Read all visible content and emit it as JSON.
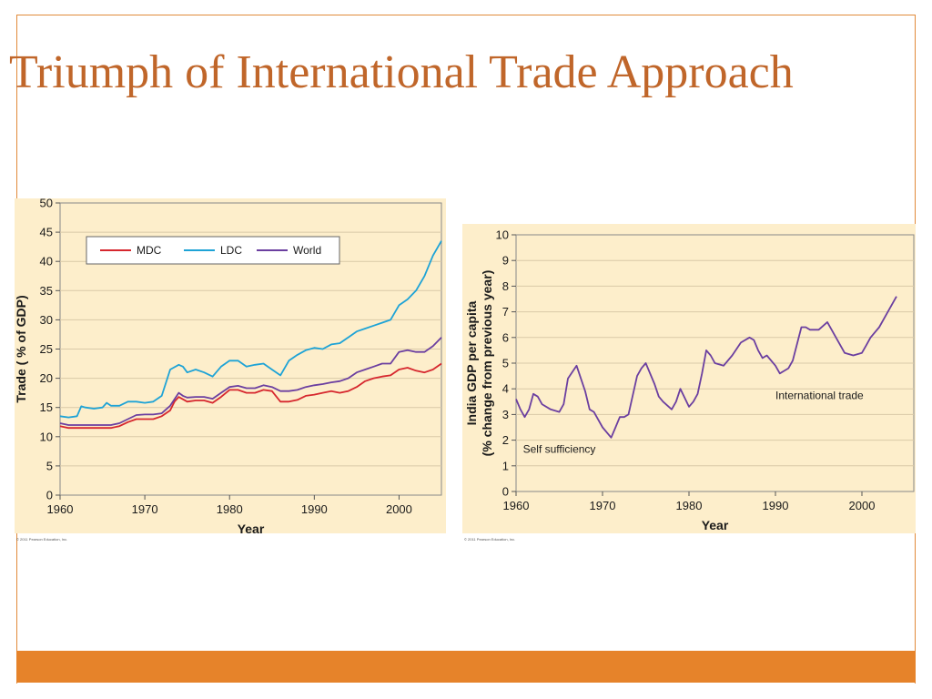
{
  "slide": {
    "title": "Triumph of International Trade Approach",
    "colors": {
      "accent": "#e6832a",
      "title": "#c0662a",
      "plot_bg": "#fdeecb"
    }
  },
  "chart_data": [
    {
      "type": "line",
      "xlabel": "Year",
      "ylabel": "Trade ( % of GDP)",
      "xlim": [
        1960,
        2005
      ],
      "ylim": [
        0,
        50
      ],
      "xticks": [
        1960,
        1970,
        1980,
        1990,
        2000
      ],
      "yticks": [
        0,
        5,
        10,
        15,
        20,
        25,
        30,
        35,
        40,
        45,
        50
      ],
      "grid": "horizontal",
      "legend_position": "top-left",
      "credit": "© 2011 Pearson Education, Inc.",
      "series": [
        {
          "name": "MDC",
          "color": "#d6272e",
          "x": [
            1960,
            1961,
            1962,
            1963,
            1964,
            1965,
            1966,
            1967,
            1968,
            1969,
            1970,
            1971,
            1972,
            1973,
            1973.5,
            1974,
            1974.5,
            1975,
            1976,
            1977,
            1978,
            1979,
            1980,
            1981,
            1982,
            1983,
            1984,
            1985,
            1986,
            1987,
            1988,
            1989,
            1990,
            1991,
            1992,
            1993,
            1994,
            1995,
            1996,
            1997,
            1998,
            1999,
            2000,
            2001,
            2002,
            2003,
            2004,
            2005
          ],
          "values": [
            11.8,
            11.5,
            11.5,
            11.5,
            11.5,
            11.5,
            11.5,
            11.8,
            12.5,
            13.0,
            13.0,
            13.0,
            13.5,
            14.5,
            16.0,
            16.8,
            16.4,
            16.0,
            16.2,
            16.2,
            15.8,
            16.8,
            18.0,
            18.0,
            17.5,
            17.5,
            18.0,
            17.8,
            16.0,
            16.0,
            16.3,
            17.0,
            17.2,
            17.5,
            17.8,
            17.5,
            17.8,
            18.5,
            19.5,
            20.0,
            20.3,
            20.5,
            21.5,
            21.8,
            21.3,
            21.0,
            21.5,
            22.5
          ]
        },
        {
          "name": "LDC",
          "color": "#1ea3d6",
          "x": [
            1960,
            1961,
            1962,
            1962.5,
            1963,
            1964,
            1965,
            1965.5,
            1966,
            1967,
            1968,
            1969,
            1970,
            1971,
            1972,
            1973,
            1974,
            1974.5,
            1975,
            1976,
            1977,
            1978,
            1979,
            1980,
            1981,
            1982,
            1983,
            1984,
            1985,
            1986,
            1987,
            1988,
            1989,
            1990,
            1991,
            1992,
            1993,
            1994,
            1995,
            1996,
            1997,
            1998,
            1999,
            2000,
            2001,
            2002,
            2003,
            2004,
            2005
          ],
          "values": [
            13.5,
            13.3,
            13.5,
            15.2,
            15.0,
            14.8,
            15.0,
            15.8,
            15.3,
            15.3,
            16.0,
            16.0,
            15.8,
            16.0,
            17.0,
            21.5,
            22.3,
            22.0,
            21.0,
            21.5,
            21.0,
            20.3,
            22.0,
            23.0,
            23.0,
            22.0,
            22.3,
            22.5,
            21.5,
            20.5,
            23.0,
            24.0,
            24.8,
            25.2,
            25.0,
            25.8,
            26.0,
            27.0,
            28.0,
            28.5,
            29.0,
            29.5,
            30.0,
            32.5,
            33.5,
            35.0,
            37.5,
            41.0,
            43.5
          ]
        },
        {
          "name": "World",
          "color": "#6b3fa0",
          "x": [
            1960,
            1961,
            1962,
            1963,
            1964,
            1965,
            1966,
            1967,
            1968,
            1969,
            1970,
            1971,
            1972,
            1973,
            1974,
            1974.5,
            1975,
            1976,
            1977,
            1978,
            1979,
            1980,
            1981,
            1982,
            1983,
            1984,
            1985,
            1986,
            1987,
            1988,
            1989,
            1990,
            1991,
            1992,
            1993,
            1994,
            1995,
            1996,
            1997,
            1998,
            1999,
            2000,
            2001,
            2002,
            2003,
            2004,
            2005
          ],
          "values": [
            12.3,
            12.0,
            12.0,
            12.0,
            12.0,
            12.0,
            12.0,
            12.3,
            13.0,
            13.7,
            13.8,
            13.8,
            14.0,
            15.3,
            17.5,
            17.0,
            16.7,
            16.8,
            16.8,
            16.5,
            17.5,
            18.5,
            18.7,
            18.3,
            18.3,
            18.8,
            18.5,
            17.8,
            17.8,
            18.0,
            18.5,
            18.8,
            19.0,
            19.3,
            19.5,
            20.0,
            21.0,
            21.5,
            22.0,
            22.5,
            22.5,
            24.5,
            24.8,
            24.5,
            24.5,
            25.5,
            27.0
          ]
        }
      ]
    },
    {
      "type": "line",
      "xlabel": "Year",
      "ylabel": "India GDP per capita",
      "ylabel2": "(% change from previous year)",
      "xlim": [
        1960,
        2006
      ],
      "ylim": [
        0,
        10
      ],
      "xticks": [
        1960,
        1970,
        1980,
        1990,
        2000
      ],
      "yticks": [
        0,
        1,
        2,
        3,
        4,
        5,
        6,
        7,
        8,
        9,
        10
      ],
      "grid": "horizontal",
      "credit": "© 2011 Pearson Education, Inc.",
      "annotations": [
        {
          "text": "Self sufficiency",
          "x": 1960.8,
          "y": 1.5
        },
        {
          "text": "International trade",
          "x": 1990.0,
          "y": 3.6
        }
      ],
      "series": [
        {
          "name": "",
          "color": "#6b3fa0",
          "x": [
            1960,
            1960.5,
            1961,
            1961.5,
            1962,
            1962.5,
            1963,
            1964,
            1965,
            1965.5,
            1966,
            1967,
            1968,
            1968.5,
            1969,
            1970,
            1971,
            1971.5,
            1972,
            1972.5,
            1973,
            1974,
            1974.5,
            1975,
            1976,
            1976.5,
            1977,
            1978,
            1978.5,
            1979,
            1980,
            1980.5,
            1981,
            1981.5,
            1982,
            1982.5,
            1983,
            1984,
            1985,
            1986,
            1987,
            1987.5,
            1988,
            1988.5,
            1989,
            1990,
            1990.5,
            1991,
            1991.5,
            1992,
            1993,
            1993.5,
            1994,
            1995,
            1996,
            1997,
            1998,
            1999,
            2000,
            2000.5,
            2001,
            2002,
            2003,
            2004
          ],
          "values": [
            3.6,
            3.2,
            2.9,
            3.2,
            3.8,
            3.7,
            3.4,
            3.2,
            3.1,
            3.4,
            4.4,
            4.9,
            3.9,
            3.2,
            3.1,
            2.5,
            2.1,
            2.5,
            2.9,
            2.9,
            3.0,
            4.5,
            4.8,
            5.0,
            4.2,
            3.7,
            3.5,
            3.2,
            3.5,
            4.0,
            3.3,
            3.5,
            3.8,
            4.6,
            5.5,
            5.3,
            5.0,
            4.9,
            5.3,
            5.8,
            6.0,
            5.9,
            5.5,
            5.2,
            5.3,
            4.9,
            4.6,
            4.7,
            4.8,
            5.1,
            6.4,
            6.4,
            6.3,
            6.3,
            6.6,
            6.0,
            5.4,
            5.3,
            5.4,
            5.7,
            6.0,
            6.4,
            7.0,
            7.6
          ]
        }
      ]
    }
  ]
}
